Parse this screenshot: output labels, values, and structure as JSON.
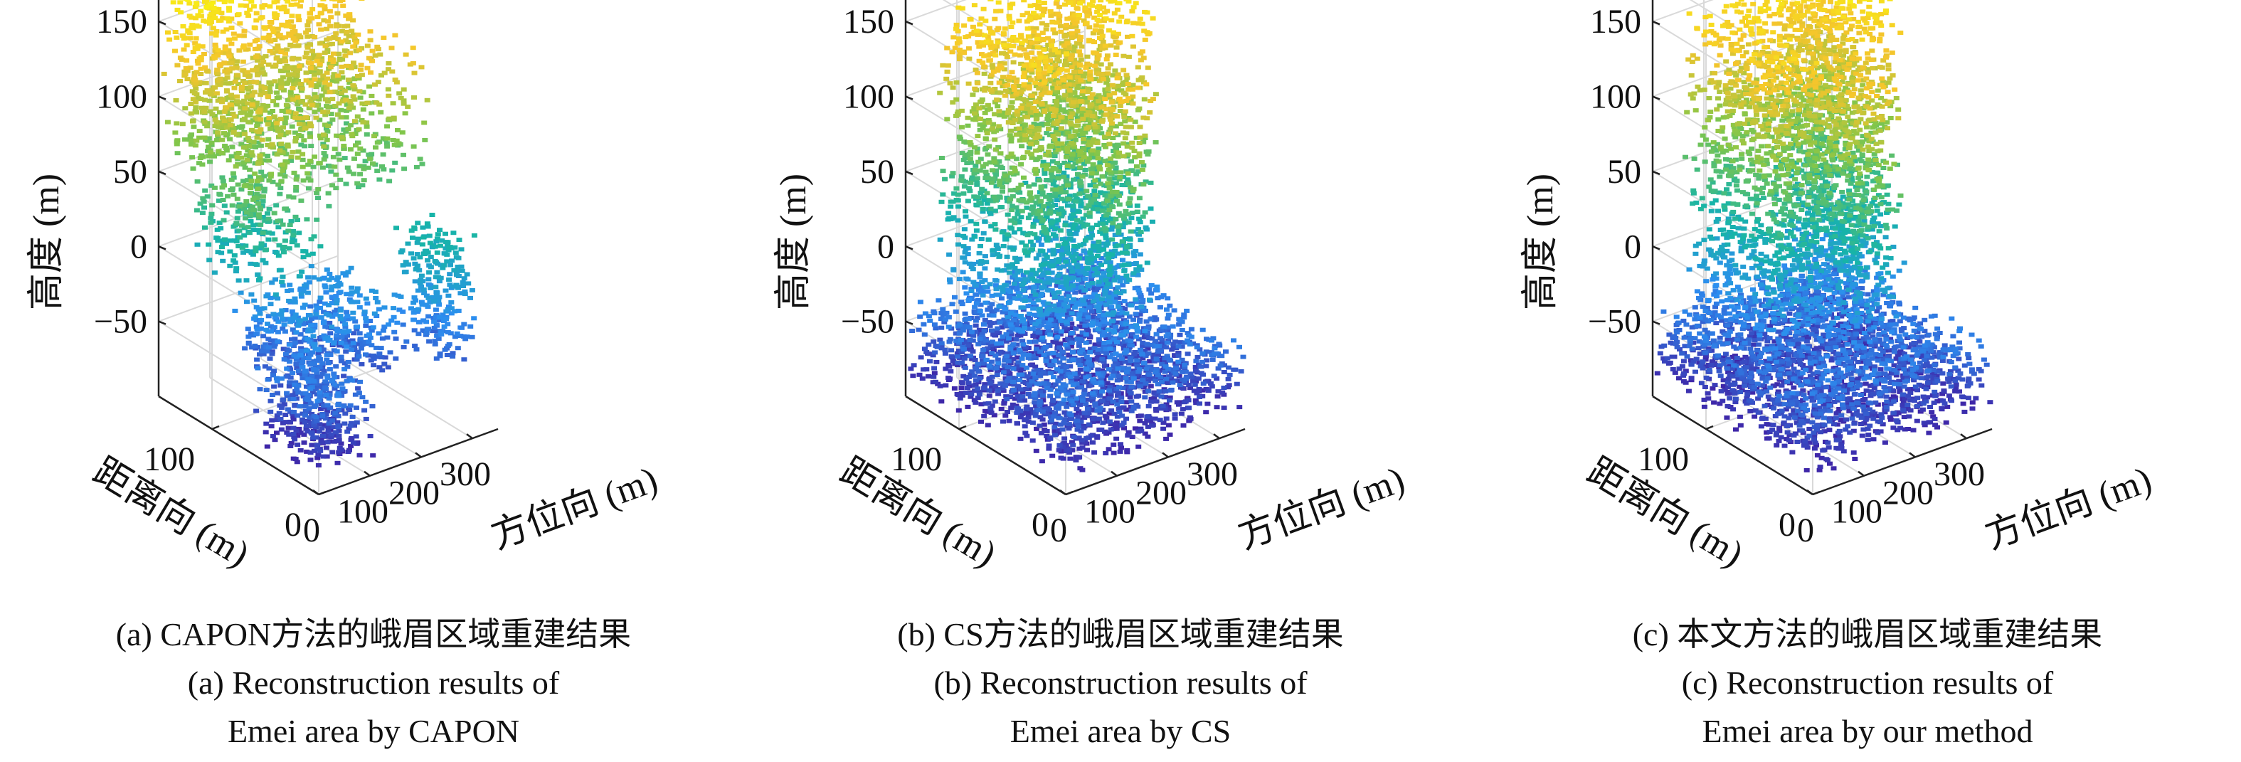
{
  "chart_data": [
    {
      "type": "scatter",
      "id": "a",
      "method": "CAPON",
      "caption_cn": "(a) CAPON方法的峨眉区域重建结果",
      "caption_en_1": "(a) Reconstruction results of",
      "caption_en_2": "Emei area by CAPON",
      "zlabel": "高度 (m)",
      "ylabel": "距离向 (m)",
      "xlabel": "方位向 (m)",
      "z_ticks": [
        "150",
        "100",
        "50",
        "0",
        "−50"
      ],
      "y_ticks": [
        "100",
        "0"
      ],
      "x_ticks": [
        "0",
        "100",
        "200",
        "300"
      ],
      "xlim": [
        0,
        350
      ],
      "ylim": [
        0,
        150
      ],
      "zlim": [
        -100,
        180
      ],
      "colormap": [
        "#3e26a8",
        "#2c8ef0",
        "#17b4a8",
        "#82c64a",
        "#f5c52c",
        "#f9fb0e"
      ],
      "clusters": [
        {
          "x": [
            10,
            340
          ],
          "y": [
            120,
            150
          ],
          "z": [
            60,
            180
          ],
          "n": 900
        },
        {
          "x": [
            10,
            140
          ],
          "y": [
            60,
            130
          ],
          "z": [
            0,
            120
          ],
          "n": 500
        },
        {
          "x": [
            150,
            340
          ],
          "y": [
            60,
            140
          ],
          "z": [
            40,
            130
          ],
          "n": 400
        },
        {
          "x": [
            60,
            260
          ],
          "y": [
            40,
            110
          ],
          "z": [
            -70,
            -20
          ],
          "n": 500
        },
        {
          "x": [
            270,
            350
          ],
          "y": [
            20,
            60
          ],
          "z": [
            -60,
            20
          ],
          "n": 250
        },
        {
          "x": [
            0,
            120
          ],
          "y": [
            0,
            60
          ],
          "z": [
            -90,
            -40
          ],
          "n": 350
        }
      ]
    },
    {
      "type": "scatter",
      "id": "b",
      "method": "CS",
      "caption_cn": "(b) CS方法的峨眉区域重建结果",
      "caption_en_1": "(b) Reconstruction results of",
      "caption_en_2": "Emei area by CS",
      "zlabel": "高度 (m)",
      "ylabel": "距离向 (m)",
      "xlabel": "方位向 (m)",
      "z_ticks": [
        "150",
        "100",
        "50",
        "0",
        "−50"
      ],
      "y_ticks": [
        "100",
        "0"
      ],
      "x_ticks": [
        "0",
        "100",
        "200",
        "300"
      ],
      "xlim": [
        0,
        350
      ],
      "ylim": [
        0,
        150
      ],
      "zlim": [
        -100,
        180
      ],
      "colormap": [
        "#3e26a8",
        "#2c8ef0",
        "#17b4a8",
        "#82c64a",
        "#f5c52c",
        "#f9fb0e"
      ],
      "clusters": [
        {
          "x": [
            0,
            350
          ],
          "y": [
            0,
            150
          ],
          "z": [
            -90,
            -40
          ],
          "n": 2200
        },
        {
          "x": [
            60,
            150
          ],
          "y": [
            60,
            150
          ],
          "z": [
            -40,
            150
          ],
          "n": 900
        },
        {
          "x": [
            150,
            240
          ],
          "y": [
            30,
            110
          ],
          "z": [
            -40,
            130
          ],
          "n": 700
        },
        {
          "x": [
            230,
            330
          ],
          "y": [
            70,
            150
          ],
          "z": [
            -40,
            160
          ],
          "n": 800
        },
        {
          "x": [
            140,
            330
          ],
          "y": [
            110,
            150
          ],
          "z": [
            60,
            180
          ],
          "n": 400
        }
      ]
    },
    {
      "type": "scatter",
      "id": "c",
      "method": "本文",
      "caption_cn": "(c) 本文方法的峨眉区域重建结果",
      "caption_en_1": "(c) Reconstruction results of",
      "caption_en_2": "Emei area by our method",
      "zlabel": "高度 (m)",
      "ylabel": "距离向 (m)",
      "xlabel": "方位向 (m)",
      "z_ticks": [
        "150",
        "100",
        "50",
        "0",
        "−50"
      ],
      "y_ticks": [
        "100",
        "0"
      ],
      "x_ticks": [
        "0",
        "100",
        "200",
        "300"
      ],
      "xlim": [
        0,
        350
      ],
      "ylim": [
        0,
        150
      ],
      "zlim": [
        -100,
        180
      ],
      "colormap": [
        "#3e26a8",
        "#2c8ef0",
        "#17b4a8",
        "#82c64a",
        "#f5c52c",
        "#f9fb0e"
      ],
      "clusters": [
        {
          "x": [
            0,
            350
          ],
          "y": [
            0,
            150
          ],
          "z": [
            -90,
            -40
          ],
          "n": 2200
        },
        {
          "x": [
            60,
            150
          ],
          "y": [
            60,
            150
          ],
          "z": [
            -40,
            150
          ],
          "n": 900
        },
        {
          "x": [
            150,
            240
          ],
          "y": [
            30,
            110
          ],
          "z": [
            -40,
            130
          ],
          "n": 700
        },
        {
          "x": [
            230,
            330
          ],
          "y": [
            70,
            150
          ],
          "z": [
            -40,
            170
          ],
          "n": 900
        },
        {
          "x": [
            140,
            330
          ],
          "y": [
            110,
            150
          ],
          "z": [
            60,
            180
          ],
          "n": 450
        }
      ]
    }
  ]
}
